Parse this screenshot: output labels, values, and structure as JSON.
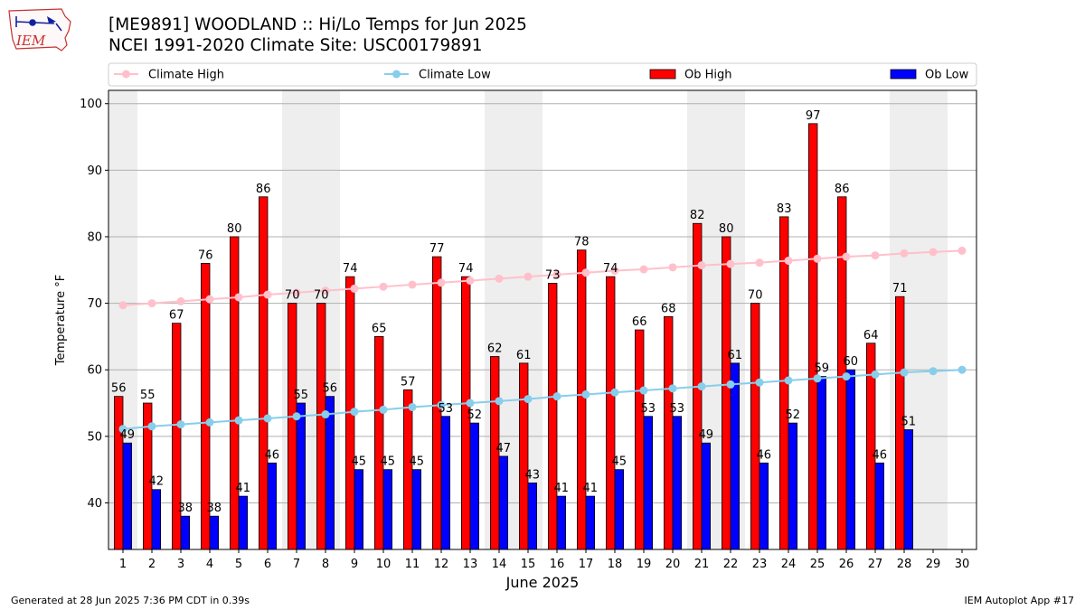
{
  "header": {
    "title": "[ME9891] WOODLAND :: Hi/Lo Temps for Jun 2025",
    "subtitle": "NCEI 1991-2020 Climate Site: USC00179891"
  },
  "logo": {
    "text": "IEM",
    "icon": "iowa-state-weather-logo"
  },
  "footer": {
    "left": "Generated at 28 Jun 2025 7:36 PM CDT in 0.39s",
    "right": "IEM Autoplot App #17"
  },
  "colors": {
    "ob_high": "#ff0000",
    "ob_low": "#0000ff",
    "climate_high": "#ffc0cb",
    "climate_low": "#87ceeb",
    "weekend_shade": "#eeeeee"
  },
  "chart_data": {
    "type": "bar",
    "xlabel": "June 2025",
    "ylabel": "Temperature °F",
    "ylim": [
      33,
      102
    ],
    "yticks": [
      40,
      50,
      60,
      70,
      80,
      90,
      100
    ],
    "grid": "horizontal",
    "legend_placement": "top",
    "legend": [
      "Climate High",
      "Climate Low",
      "Ob High",
      "Ob Low"
    ],
    "x": [
      1,
      2,
      3,
      4,
      5,
      6,
      7,
      8,
      9,
      10,
      11,
      12,
      13,
      14,
      15,
      16,
      17,
      18,
      19,
      20,
      21,
      22,
      23,
      24,
      25,
      26,
      27,
      28,
      29,
      30
    ],
    "shaded_weekend_days": [
      1,
      7,
      8,
      14,
      15,
      21,
      22,
      28,
      29
    ],
    "series": [
      {
        "name": "Ob High",
        "kind": "bar",
        "values": [
          56,
          55,
          67,
          76,
          80,
          86,
          70,
          70,
          74,
          65,
          57,
          77,
          74,
          62,
          61,
          73,
          78,
          74,
          66,
          68,
          82,
          80,
          70,
          83,
          97,
          86,
          64,
          71,
          null,
          null
        ]
      },
      {
        "name": "Ob Low",
        "kind": "bar",
        "values": [
          49,
          42,
          38,
          38,
          41,
          46,
          55,
          56,
          45,
          45,
          45,
          53,
          52,
          47,
          43,
          41,
          41,
          45,
          53,
          53,
          49,
          61,
          46,
          52,
          59,
          60,
          46,
          51,
          null,
          null
        ]
      },
      {
        "name": "Climate High",
        "kind": "line",
        "values": [
          69.7,
          70.0,
          70.3,
          70.6,
          70.9,
          71.3,
          71.6,
          71.9,
          72.2,
          72.5,
          72.8,
          73.1,
          73.4,
          73.7,
          74.0,
          74.3,
          74.6,
          74.9,
          75.1,
          75.4,
          75.7,
          75.9,
          76.1,
          76.4,
          76.7,
          77.0,
          77.2,
          77.5,
          77.7,
          77.9
        ]
      },
      {
        "name": "Climate Low",
        "kind": "line",
        "values": [
          51.1,
          51.5,
          51.8,
          52.1,
          52.4,
          52.7,
          53.0,
          53.3,
          53.7,
          54.0,
          54.4,
          54.7,
          55.0,
          55.3,
          55.6,
          56.0,
          56.3,
          56.6,
          56.9,
          57.2,
          57.5,
          57.8,
          58.1,
          58.4,
          58.7,
          59.0,
          59.3,
          59.6,
          59.8,
          60.0
        ]
      }
    ]
  }
}
